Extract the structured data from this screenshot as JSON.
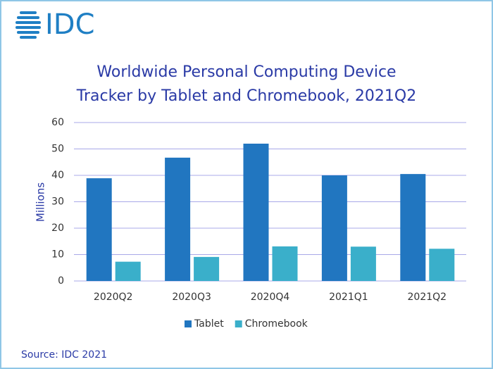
{
  "logo": "IDC",
  "source": "Source: IDC 2021",
  "chart_data": {
    "type": "bar",
    "title": [
      "Worldwide Personal Computing Device",
      "Tracker by Tablet and Chromebook, 2021Q2"
    ],
    "ylabel": "Millions",
    "categories": [
      "2020Q2",
      "2020Q3",
      "2020Q4",
      "2021Q1",
      "2021Q2"
    ],
    "series": [
      {
        "name": "Tablet",
        "color": "#2176c0",
        "values": [
          38.9,
          46.7,
          52.0,
          40.0,
          40.5
        ]
      },
      {
        "name": "Chromebook",
        "color": "#3aafca",
        "values": [
          7.3,
          9.1,
          13.1,
          13.0,
          12.2
        ]
      }
    ],
    "ylim": [
      0,
      60
    ],
    "yticks": [
      0,
      10,
      20,
      30,
      40,
      50,
      60
    ],
    "grid": true,
    "legend": "bottom"
  }
}
